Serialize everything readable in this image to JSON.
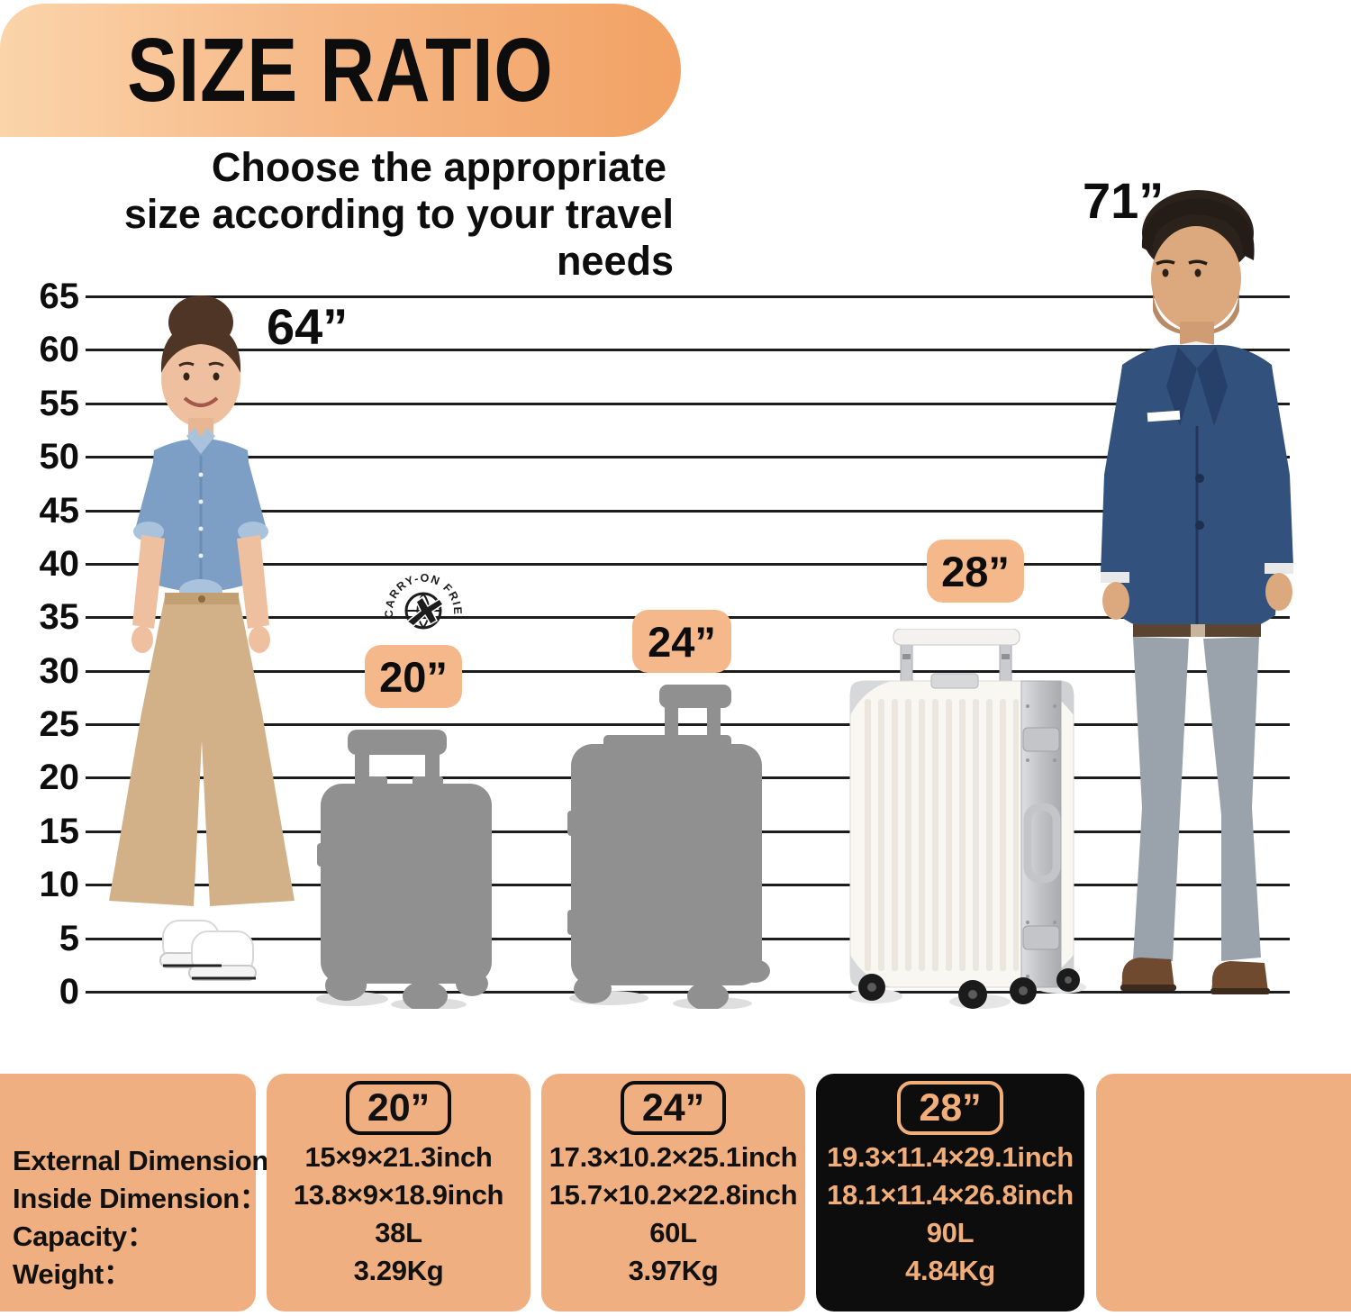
{
  "title": "SIZE RATIO",
  "subtitle": {
    "line1": "Choose the appropriate",
    "line2": "size according to your travel needs"
  },
  "ruler": {
    "ticks": [
      "65",
      "60",
      "55",
      "50",
      "45",
      "40",
      "35",
      "30",
      "25",
      "20",
      "15",
      "10",
      "5",
      "0"
    ],
    "tick_values": [
      65,
      60,
      55,
      50,
      45,
      40,
      35,
      30,
      25,
      20,
      15,
      10,
      5,
      0
    ],
    "unit": "inch"
  },
  "people": {
    "woman": {
      "height_label": "64”"
    },
    "man": {
      "height_label": "71”"
    }
  },
  "badge": {
    "label": "CARRY-ON FRIENDLY"
  },
  "sizes": {
    "s20": {
      "label": "20”"
    },
    "s24": {
      "label": "24”"
    },
    "s28": {
      "label": "28”"
    }
  },
  "table": {
    "row_labels": [
      "External Dimension：",
      "Inside Dimension：",
      "Capacity：",
      "Weight："
    ],
    "columns": [
      {
        "header": "20”",
        "external": "15×9×21.3inch",
        "inside": "13.8×9×18.9inch",
        "capacity": "38L",
        "weight": "3.29Kg"
      },
      {
        "header": "24”",
        "external": "17.3×10.2×25.1inch",
        "inside": "15.7×10.2×22.8inch",
        "capacity": "60L",
        "weight": "3.97Kg"
      },
      {
        "header": "28”",
        "external": "19.3×11.4×29.1inch",
        "inside": "18.1×11.4×26.8inch",
        "capacity": "90L",
        "weight": "4.84Kg"
      }
    ]
  },
  "colors": {
    "banner_gradient_start": "#fbd4aa",
    "banner_gradient_end": "#f2a264",
    "size_tag_bg": "#f5b88b",
    "table_panel_bg": "#f0af80",
    "table_dark_panel_bg": "#0d0d0d",
    "table_dark_panel_text": "#f2ae79",
    "silhouette_gray": "#909090",
    "ruler_line": "#1c1c1c"
  }
}
